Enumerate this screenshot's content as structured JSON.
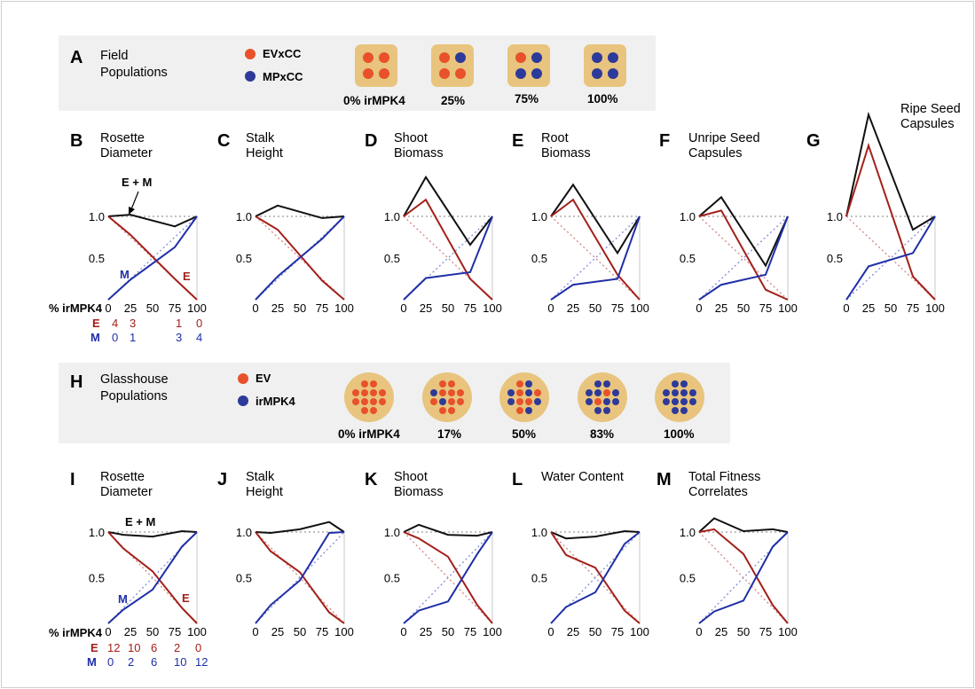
{
  "colors": {
    "ev": "#e8512a",
    "mp": "#2e3a9a",
    "e_line": "#a3201a",
    "m_line": "#1f2fa6",
    "combined": "#111111",
    "pot": "#e8c47e",
    "band": "#f0f0f0"
  },
  "panels": {
    "A": {
      "letter": "A",
      "title": [
        "Field",
        "Populations"
      ],
      "legend": [
        "EVxCC",
        "MPxCC"
      ],
      "pots": [
        "0% irMPK4",
        "25%",
        "75%",
        "100%"
      ]
    },
    "H": {
      "letter": "H",
      "title": [
        "Glasshouse",
        "Populations"
      ],
      "legend": [
        "EV",
        "irMPK4"
      ],
      "pots": [
        "0% irMPK4",
        "17%",
        "50%",
        "83%",
        "100%"
      ]
    }
  },
  "rows": {
    "top": {
      "xtick_labels": [
        "0",
        "25",
        "50",
        "75",
        "100"
      ],
      "ytick_labels": [
        "1.0",
        "0.5"
      ],
      "axis_label": "% irMPK4",
      "counts": {
        "e_label": "E",
        "m_label": "M",
        "e": [
          "4",
          "3",
          "",
          "1",
          "0"
        ],
        "m": [
          "0",
          "1",
          "",
          "3",
          "4"
        ]
      }
    },
    "bottom": {
      "xtick_labels": [
        "0",
        "25",
        "50",
        "75",
        "100"
      ],
      "ytick_labels": [
        "1.0",
        "0.5"
      ],
      "axis_label": "% irMPK4",
      "counts": {
        "e_label": "E",
        "m_label": "M",
        "e": [
          "12",
          "10",
          "6",
          "2",
          "0"
        ],
        "m": [
          "0",
          "2",
          "6",
          "10",
          "12"
        ]
      }
    }
  },
  "annotations": {
    "combined": "E + M",
    "m": "M",
    "e": "E"
  },
  "chart_data": [
    {
      "panel": "B",
      "type": "line",
      "title": "Rosette Diameter",
      "x": [
        0,
        25,
        75,
        100
      ],
      "ylim": [
        0,
        1.3
      ],
      "series": [
        {
          "name": "E + M",
          "values": [
            1.0,
            1.02,
            0.88,
            1.0
          ]
        },
        {
          "name": "E",
          "values": [
            1.0,
            0.78,
            0.25,
            0.0
          ]
        },
        {
          "name": "M",
          "values": [
            0.0,
            0.24,
            0.63,
            1.0
          ]
        }
      ]
    },
    {
      "panel": "C",
      "type": "line",
      "title": "Stalk Height",
      "x": [
        0,
        25,
        75,
        100
      ],
      "ylim": [
        0,
        1.3
      ],
      "series": [
        {
          "name": "E + M",
          "values": [
            1.0,
            1.13,
            0.98,
            1.0
          ]
        },
        {
          "name": "E",
          "values": [
            1.0,
            0.84,
            0.23,
            0.0
          ]
        },
        {
          "name": "M",
          "values": [
            0.0,
            0.28,
            0.73,
            1.0
          ]
        }
      ]
    },
    {
      "panel": "D",
      "type": "line",
      "title": "Shoot Biomass",
      "x": [
        0,
        25,
        75,
        100
      ],
      "ylim": [
        0,
        1.5
      ],
      "series": [
        {
          "name": "E + M",
          "values": [
            1.0,
            1.47,
            0.66,
            1.0
          ]
        },
        {
          "name": "E",
          "values": [
            1.0,
            1.2,
            0.25,
            0.0
          ]
        },
        {
          "name": "M",
          "values": [
            0.0,
            0.26,
            0.33,
            1.0
          ]
        }
      ]
    },
    {
      "panel": "E",
      "type": "line",
      "title": "Root Biomass",
      "x": [
        0,
        25,
        75,
        100
      ],
      "ylim": [
        0,
        1.5
      ],
      "series": [
        {
          "name": "E + M",
          "values": [
            1.0,
            1.38,
            0.56,
            1.0
          ]
        },
        {
          "name": "E",
          "values": [
            1.0,
            1.2,
            0.3,
            0.0
          ]
        },
        {
          "name": "M",
          "values": [
            0.0,
            0.18,
            0.25,
            1.0
          ]
        }
      ]
    },
    {
      "panel": "F",
      "type": "line",
      "title": "Unripe Seed Capsules",
      "x": [
        0,
        25,
        75,
        100
      ],
      "ylim": [
        0,
        1.5
      ],
      "series": [
        {
          "name": "E + M",
          "values": [
            1.0,
            1.23,
            0.41,
            1.0
          ]
        },
        {
          "name": "E",
          "values": [
            1.0,
            1.07,
            0.12,
            0.0
          ]
        },
        {
          "name": "M",
          "values": [
            0.0,
            0.18,
            0.3,
            1.0
          ]
        }
      ]
    },
    {
      "panel": "G",
      "type": "line",
      "title": "Ripe Seed Capsules",
      "x": [
        0,
        25,
        75,
        100
      ],
      "ylim": [
        0,
        2.3
      ],
      "series": [
        {
          "name": "E + M",
          "values": [
            1.0,
            2.22,
            0.84,
            1.0
          ]
        },
        {
          "name": "E",
          "values": [
            1.0,
            1.85,
            0.28,
            0.0
          ]
        },
        {
          "name": "M",
          "values": [
            0.0,
            0.4,
            0.56,
            1.0
          ]
        }
      ]
    },
    {
      "panel": "I",
      "type": "line",
      "title": "Rosette Diameter",
      "x": [
        0,
        17,
        50,
        83,
        100
      ],
      "ylim": [
        0,
        1.3
      ],
      "series": [
        {
          "name": "E + M",
          "values": [
            1.0,
            0.97,
            0.95,
            1.01,
            1.0
          ]
        },
        {
          "name": "E",
          "values": [
            1.0,
            0.82,
            0.57,
            0.17,
            0.0
          ]
        },
        {
          "name": "M",
          "values": [
            0.0,
            0.15,
            0.37,
            0.84,
            1.0
          ]
        }
      ]
    },
    {
      "panel": "J",
      "type": "line",
      "title": "Stalk Height",
      "x": [
        0,
        17,
        50,
        83,
        100
      ],
      "ylim": [
        0,
        1.3
      ],
      "series": [
        {
          "name": "E + M",
          "values": [
            1.0,
            0.99,
            1.03,
            1.11,
            1.0
          ]
        },
        {
          "name": "E",
          "values": [
            1.0,
            0.79,
            0.56,
            0.12,
            0.0
          ]
        },
        {
          "name": "M",
          "values": [
            0.0,
            0.2,
            0.47,
            0.99,
            1.0
          ]
        }
      ]
    },
    {
      "panel": "K",
      "type": "line",
      "title": "Shoot Biomass",
      "x": [
        0,
        17,
        50,
        83,
        100
      ],
      "ylim": [
        0,
        1.3
      ],
      "series": [
        {
          "name": "E + M",
          "values": [
            1.0,
            1.08,
            0.97,
            0.96,
            1.0
          ]
        },
        {
          "name": "E",
          "values": [
            1.0,
            0.93,
            0.73,
            0.2,
            0.0
          ]
        },
        {
          "name": "M",
          "values": [
            0.0,
            0.14,
            0.24,
            0.76,
            1.0
          ]
        }
      ]
    },
    {
      "panel": "L",
      "type": "line",
      "title": "Water Content",
      "x": [
        0,
        17,
        50,
        83,
        100
      ],
      "ylim": [
        0,
        1.3
      ],
      "series": [
        {
          "name": "E + M",
          "values": [
            1.0,
            0.93,
            0.95,
            1.01,
            1.0
          ]
        },
        {
          "name": "E",
          "values": [
            1.0,
            0.75,
            0.61,
            0.14,
            0.0
          ]
        },
        {
          "name": "M",
          "values": [
            0.0,
            0.18,
            0.34,
            0.87,
            1.0
          ]
        }
      ]
    },
    {
      "panel": "M",
      "type": "line",
      "title": "Total Fitness Correlates",
      "x": [
        0,
        17,
        50,
        83,
        100
      ],
      "ylim": [
        0,
        1.3
      ],
      "series": [
        {
          "name": "E + M",
          "values": [
            1.0,
            1.15,
            1.01,
            1.03,
            1.0
          ]
        },
        {
          "name": "E",
          "values": [
            1.0,
            1.03,
            0.76,
            0.2,
            0.0
          ]
        },
        {
          "name": "M",
          "values": [
            0.0,
            0.13,
            0.25,
            0.84,
            1.0
          ]
        }
      ]
    }
  ]
}
